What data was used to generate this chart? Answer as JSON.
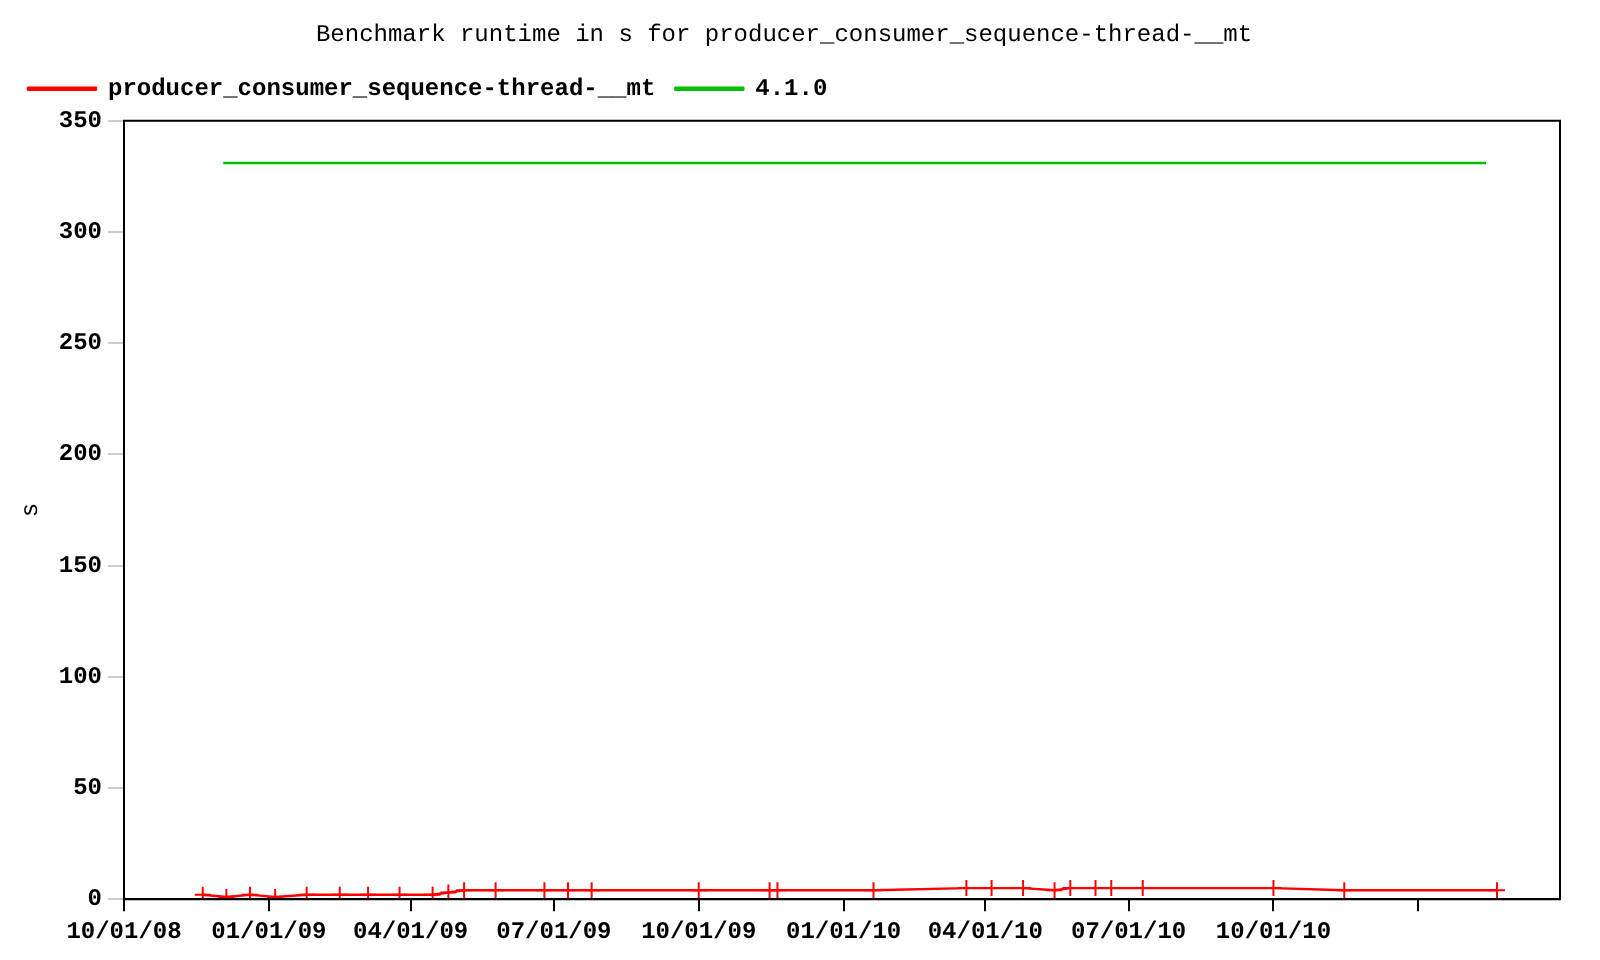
{
  "chart_data": {
    "type": "line",
    "title": "Benchmark runtime in s for producer_consumer_sequence-thread-__mt",
    "ylabel": "s",
    "xlim": [
      "2008-10-01",
      "2011-04-01"
    ],
    "xticks": [
      {
        "value": "2008-10-01",
        "label": "10/01/08"
      },
      {
        "value": "2009-01-01",
        "label": "01/01/09"
      },
      {
        "value": "2009-04-01",
        "label": "04/01/09"
      },
      {
        "value": "2009-07-01",
        "label": "07/01/09"
      },
      {
        "value": "2009-10-01",
        "label": "10/01/09"
      },
      {
        "value": "2010-01-01",
        "label": "01/01/10"
      },
      {
        "value": "2010-04-01",
        "label": "04/01/10"
      },
      {
        "value": "2010-07-01",
        "label": "07/01/10"
      },
      {
        "value": "2010-10-01",
        "label": "10/01/10"
      },
      {
        "value": "2011-01-01",
        "label": null
      }
    ],
    "ylim": [
      0,
      350
    ],
    "yticks": [
      0,
      50,
      100,
      150,
      200,
      250,
      300,
      350
    ],
    "grid": false,
    "legend": "top left",
    "series": [
      {
        "name": "producer_consumer_sequence-thread-__mt",
        "color": "#ff0000",
        "marker": "cross",
        "x": [
          "2008-11-20",
          "2008-12-05",
          "2008-12-20",
          "2009-01-05",
          "2009-01-25",
          "2009-02-15",
          "2009-03-05",
          "2009-03-25",
          "2009-04-15",
          "2009-04-25",
          "2009-05-05",
          "2009-05-25",
          "2009-06-25",
          "2009-07-10",
          "2009-07-25",
          "2009-10-01",
          "2009-11-15",
          "2009-11-20",
          "2010-01-20",
          "2010-03-20",
          "2010-04-05",
          "2010-04-25",
          "2010-05-15",
          "2010-05-25",
          "2010-06-10",
          "2010-06-20",
          "2010-07-10",
          "2010-10-01",
          "2010-11-15",
          "2011-02-20"
        ],
        "values": [
          2,
          1,
          2,
          1,
          2,
          2,
          2,
          2,
          2,
          3,
          4,
          4,
          4,
          4,
          4,
          4,
          4,
          4,
          4,
          5,
          5,
          5,
          4,
          5,
          5,
          5,
          5,
          5,
          4,
          4
        ]
      },
      {
        "name": "4.1.0",
        "color": "#00c000",
        "marker": "none",
        "x": [
          "2008-12-03",
          "2011-02-13"
        ],
        "values": [
          331,
          331
        ]
      }
    ]
  }
}
